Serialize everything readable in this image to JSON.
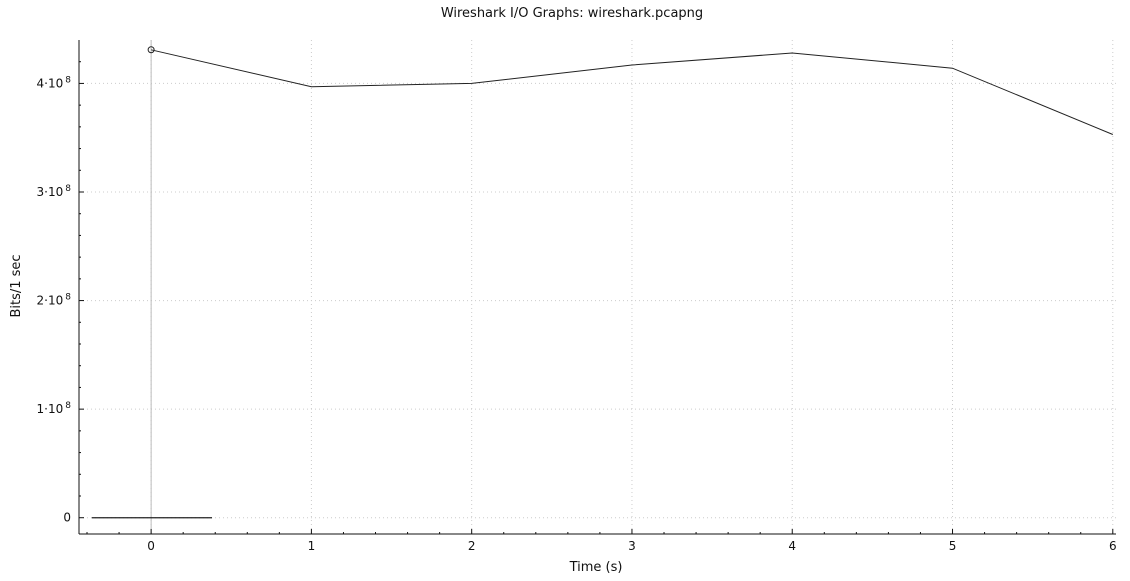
{
  "chart_data": {
    "type": "line",
    "title": "Wireshark I/O Graphs: wireshark.pcapng",
    "xlabel": "Time (s)",
    "ylabel": "Bits/1 sec",
    "xlim": [
      -0.45,
      6.02
    ],
    "ylim": [
      -15000000,
      440000000
    ],
    "x_ticks": [
      {
        "value": 0,
        "label": "0"
      },
      {
        "value": 1,
        "label": "1"
      },
      {
        "value": 2,
        "label": "2"
      },
      {
        "value": 3,
        "label": "3"
      },
      {
        "value": 4,
        "label": "4"
      },
      {
        "value": 5,
        "label": "5"
      },
      {
        "value": 6,
        "label": "6"
      }
    ],
    "y_ticks": [
      {
        "value": 0,
        "mantissa": "0",
        "exp": ""
      },
      {
        "value": 100000000,
        "mantissa": "1·10",
        "exp": "8"
      },
      {
        "value": 200000000,
        "mantissa": "2·10",
        "exp": "8"
      },
      {
        "value": 300000000,
        "mantissa": "3·10",
        "exp": "8"
      },
      {
        "value": 400000000,
        "mantissa": "4·10",
        "exp": "8"
      }
    ],
    "grid": true,
    "series": [
      {
        "x": [
          0,
          1,
          2,
          3,
          4,
          5,
          6
        ],
        "values": [
          431000000,
          397000000,
          400000000,
          417000000,
          428000000,
          414000000,
          353000000
        ]
      }
    ],
    "marker": {
      "x": 0,
      "y": 431000000
    },
    "baseline": {
      "x_start": -0.37,
      "x_end": 0.38,
      "y": 0
    },
    "colors": {
      "line": "#222222",
      "axis": "#111111",
      "grid": "#cccccc",
      "cursor": "#bbbbbb"
    }
  }
}
